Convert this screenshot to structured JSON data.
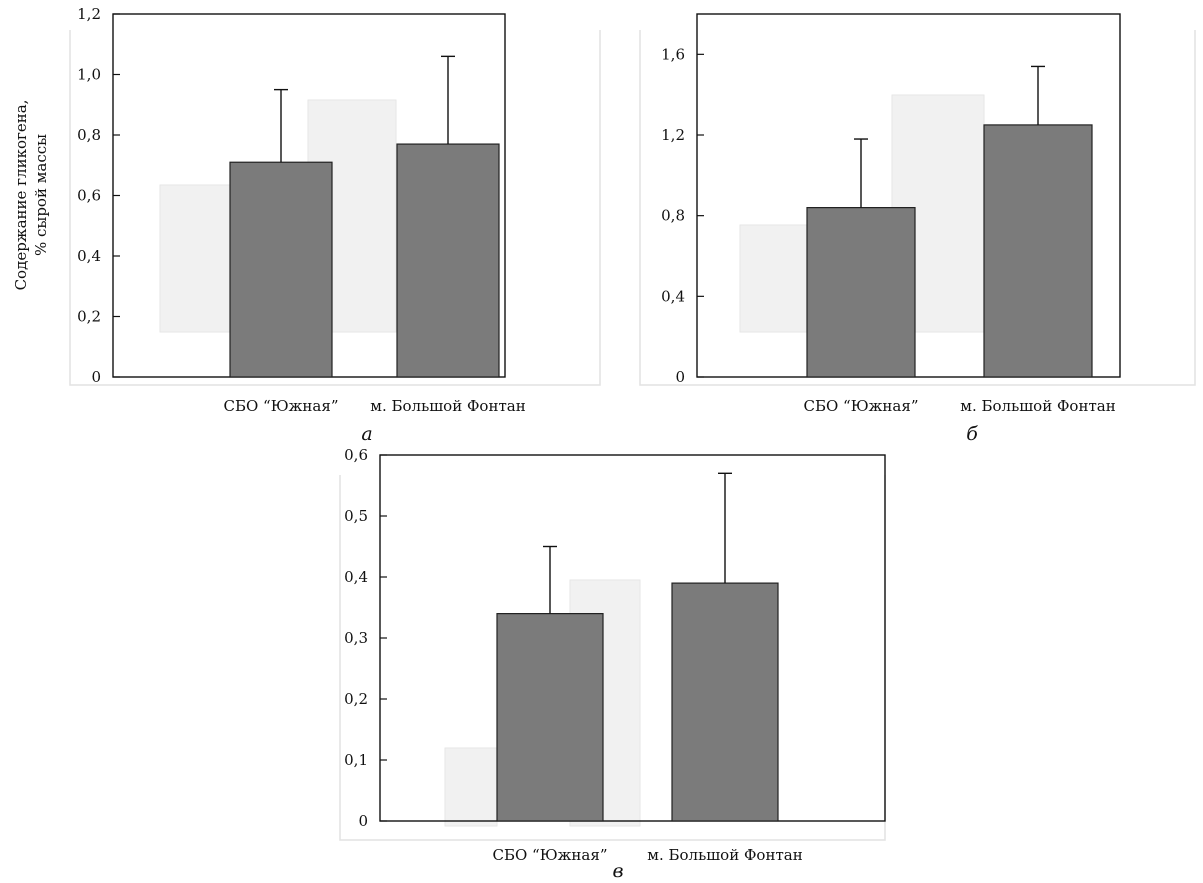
{
  "figure": {
    "ylabel_lines": [
      "Содержание гликогена,",
      "% сырой массы"
    ]
  },
  "chart_data": [
    {
      "type": "bar",
      "panel_label": "а",
      "categories": [
        "СБО “Южная”",
        "м. Большой Фонтан"
      ],
      "values": [
        0.71,
        0.77
      ],
      "errors": [
        0.24,
        0.29
      ],
      "yticks": [
        "0",
        "0,2",
        "0,4",
        "0,6",
        "0,8",
        "1,0",
        "1,2"
      ],
      "ylim": [
        0,
        1.2
      ],
      "colors": {
        "bar": "#7b7b7b"
      }
    },
    {
      "type": "bar",
      "panel_label": "б",
      "categories": [
        "СБО “Южная”",
        "м. Большой Фонтан"
      ],
      "values": [
        0.84,
        1.25
      ],
      "errors": [
        0.34,
        0.29
      ],
      "yticks": [
        "0",
        "0,4",
        "0,8",
        "1,2",
        "1,6"
      ],
      "ylim": [
        0,
        1.8
      ],
      "colors": {
        "bar": "#7b7b7b"
      }
    },
    {
      "type": "bar",
      "panel_label": "в",
      "categories": [
        "СБО “Южная”",
        "м. Большой Фонтан"
      ],
      "values": [
        0.34,
        0.39
      ],
      "errors": [
        0.11,
        0.18
      ],
      "yticks": [
        "0",
        "0,1",
        "0,2",
        "0,3",
        "0,4",
        "0,5",
        "0,6"
      ],
      "ylim": [
        0,
        0.6
      ],
      "colors": {
        "bar": "#7b7b7b"
      }
    }
  ]
}
